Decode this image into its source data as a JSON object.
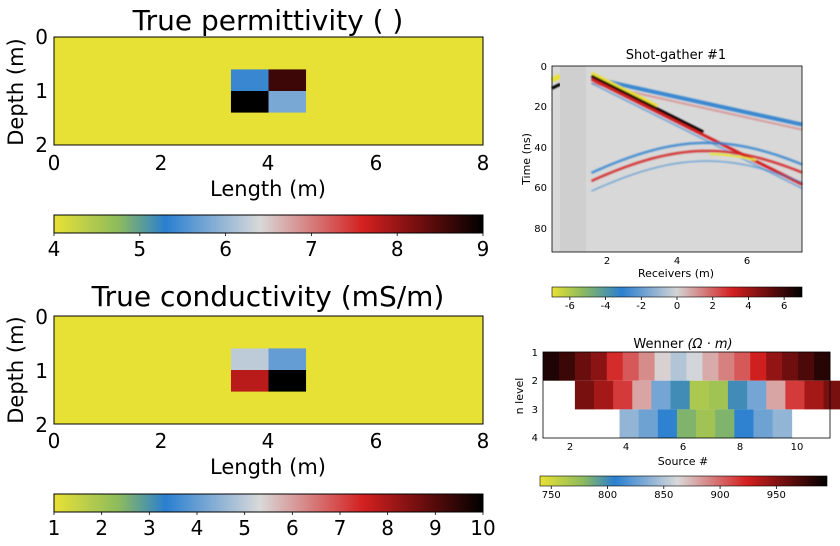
{
  "chart_data": [
    {
      "type": "heatmap",
      "title": "True permittivity ( )",
      "xlabel": "Length (m)",
      "ylabel": "Depth (m)",
      "xlim": [
        0,
        8
      ],
      "ylim": [
        0,
        2
      ],
      "x_ticks": [
        "0",
        "2",
        "4",
        "6",
        "8"
      ],
      "y_ticks": [
        "0",
        "1",
        "2"
      ],
      "background_value": 4,
      "anomalies": [
        {
          "x": [
            3.3,
            4.0
          ],
          "y": [
            0.6,
            1.0
          ],
          "value": 5.4
        },
        {
          "x": [
            4.0,
            4.7
          ],
          "y": [
            0.6,
            1.0
          ],
          "value": 8.6
        },
        {
          "x": [
            3.3,
            4.0
          ],
          "y": [
            1.0,
            1.4
          ],
          "value": 9.0
        },
        {
          "x": [
            4.0,
            4.7
          ],
          "y": [
            1.0,
            1.4
          ],
          "value": 5.8
        }
      ],
      "colorbar": {
        "min": 4,
        "max": 9,
        "ticks": [
          "4",
          "5",
          "6",
          "7",
          "8",
          "9"
        ]
      }
    },
    {
      "type": "heatmap",
      "title": "True conductivity (mS/m)",
      "xlabel": "Length (m)",
      "ylabel": "Depth (m)",
      "xlim": [
        0,
        8
      ],
      "ylim": [
        0,
        2
      ],
      "x_ticks": [
        "0",
        "2",
        "4",
        "6",
        "8"
      ],
      "y_ticks": [
        "0",
        "1",
        "2"
      ],
      "background_value": 1,
      "anomalies": [
        {
          "x": [
            3.3,
            4.0
          ],
          "y": [
            0.6,
            1.0
          ],
          "value": 5.0
        },
        {
          "x": [
            4.0,
            4.7
          ],
          "y": [
            0.6,
            1.0
          ],
          "value": 4.0
        },
        {
          "x": [
            3.3,
            4.0
          ],
          "y": [
            1.0,
            1.4
          ],
          "value": 7.8
        },
        {
          "x": [
            4.0,
            4.7
          ],
          "y": [
            1.0,
            1.4
          ],
          "value": 10.0
        }
      ],
      "colorbar": {
        "min": 1,
        "max": 10,
        "ticks": [
          "1",
          "2",
          "3",
          "4",
          "5",
          "6",
          "7",
          "8",
          "9",
          "10"
        ]
      }
    },
    {
      "type": "heatmap",
      "title": "Shot-gather #1",
      "xlabel": "Receivers (m)",
      "ylabel": "Time (ns)",
      "xlim": [
        0,
        7.6
      ],
      "ylim": [
        0,
        92
      ],
      "x_ticks": [
        "2",
        "4",
        "6"
      ],
      "y_ticks": [
        "0",
        "20",
        "40",
        "60",
        "80"
      ],
      "events": [
        {
          "kind": "direct-air-wave",
          "x": [
            1.2,
            7.6
          ],
          "t": [
            5,
            28
          ]
        },
        {
          "kind": "ground-wave",
          "x": [
            1.2,
            7.6
          ],
          "t": [
            5,
            57
          ]
        },
        {
          "kind": "reflection",
          "x": [
            1.2,
            7.6
          ],
          "t": [
            45,
            55
          ],
          "apex": [
            4.7,
            42
          ]
        }
      ],
      "colorbar": {
        "min": -7,
        "max": 7,
        "ticks": [
          "-6",
          "-4",
          "-2",
          "0",
          "2",
          "4",
          "6"
        ]
      }
    },
    {
      "type": "heatmap",
      "title": "Wenner",
      "title_units": "(Ω · m)",
      "xlabel": "Source #",
      "ylabel": "n level",
      "x_ticks": [
        "2",
        "4",
        "6",
        "8",
        "10"
      ],
      "y_ticks": [
        "1",
        "2",
        "3",
        "4"
      ],
      "rows": [
        {
          "n": 1,
          "start": 0.0,
          "width": 0.5,
          "values": [
            985,
            975,
            960,
            948,
            920,
            905,
            888,
            865,
            850,
            860,
            878,
            892,
            905,
            925,
            946,
            958,
            970,
            982
          ]
        },
        {
          "n": 2,
          "start": 1.0,
          "width": 0.6,
          "values": [
            955,
            940,
            915,
            880,
            830,
            800,
            765,
            770,
            800,
            830,
            880,
            915,
            940,
            955
          ]
        },
        {
          "n": 3,
          "start": 2.4,
          "width": 0.6,
          "values": [
            840,
            828,
            808,
            782,
            770,
            782,
            808,
            828,
            840
          ]
        }
      ],
      "colorbar": {
        "min": 740,
        "max": 995,
        "ticks": [
          "750",
          "800",
          "850",
          "900",
          "950"
        ]
      }
    }
  ]
}
